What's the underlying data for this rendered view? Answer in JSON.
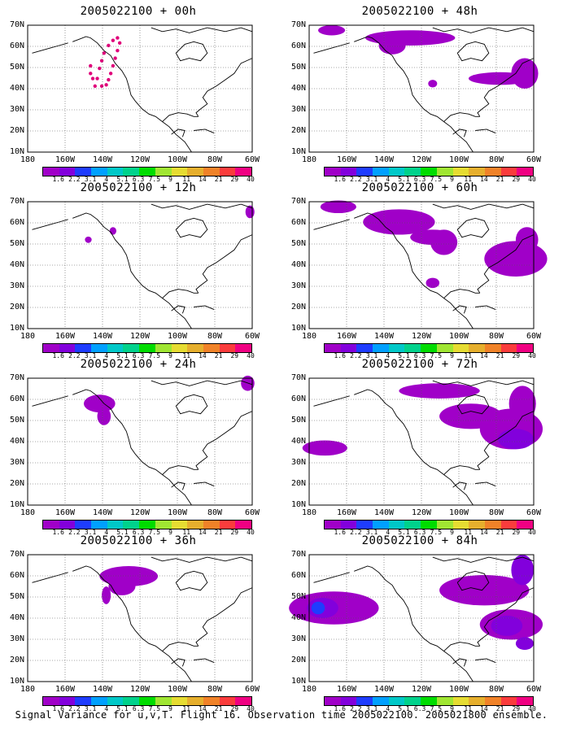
{
  "footer": "Signal Variance for u,v,T. Flight 16. Observation time 2005022100. 2005021800 ensemble.",
  "y_ticks": [
    "70N",
    "60N",
    "50N",
    "40N",
    "30N",
    "20N",
    "10N"
  ],
  "x_ticks": [
    "180",
    "160W",
    "140W",
    "120W",
    "100W",
    "80W",
    "60W"
  ],
  "colorbar": {
    "labels": [
      "1.6",
      "2.2",
      "3.1",
      "4",
      "5.1",
      "6.3",
      "7.5",
      "9",
      "11",
      "14",
      "21",
      "29",
      "40"
    ],
    "colors": [
      "#a000c8",
      "#8200dc",
      "#1e3cff",
      "#00a0ff",
      "#00c8c8",
      "#00d28c",
      "#00dc00",
      "#a0e632",
      "#e6dc32",
      "#e6af2d",
      "#f08228",
      "#fa3c3c",
      "#f00082"
    ]
  },
  "chart_data": [
    {
      "type": "map",
      "title": "2005022100 + 00h",
      "region": {
        "lon": [
          -180,
          -60
        ],
        "lat": [
          10,
          70
        ]
      }
    },
    {
      "type": "map",
      "title": "2005022100 + 12h",
      "region": {
        "lon": [
          -180,
          -60
        ],
        "lat": [
          10,
          70
        ]
      }
    },
    {
      "type": "map",
      "title": "2005022100 + 24h",
      "region": {
        "lon": [
          -180,
          -60
        ],
        "lat": [
          10,
          70
        ]
      }
    },
    {
      "type": "map",
      "title": "2005022100 + 36h",
      "region": {
        "lon": [
          -180,
          -60
        ],
        "lat": [
          10,
          70
        ]
      }
    },
    {
      "type": "map",
      "title": "2005022100 + 48h",
      "region": {
        "lon": [
          -180,
          -60
        ],
        "lat": [
          10,
          70
        ]
      }
    },
    {
      "type": "map",
      "title": "2005022100 + 60h",
      "region": {
        "lon": [
          -180,
          -60
        ],
        "lat": [
          10,
          70
        ]
      }
    },
    {
      "type": "map",
      "title": "2005022100 + 72h",
      "region": {
        "lon": [
          -180,
          -60
        ],
        "lat": [
          10,
          70
        ]
      }
    },
    {
      "type": "map",
      "title": "2005022100 + 84h",
      "region": {
        "lon": [
          -180,
          -60
        ],
        "lat": [
          10,
          70
        ]
      }
    }
  ]
}
